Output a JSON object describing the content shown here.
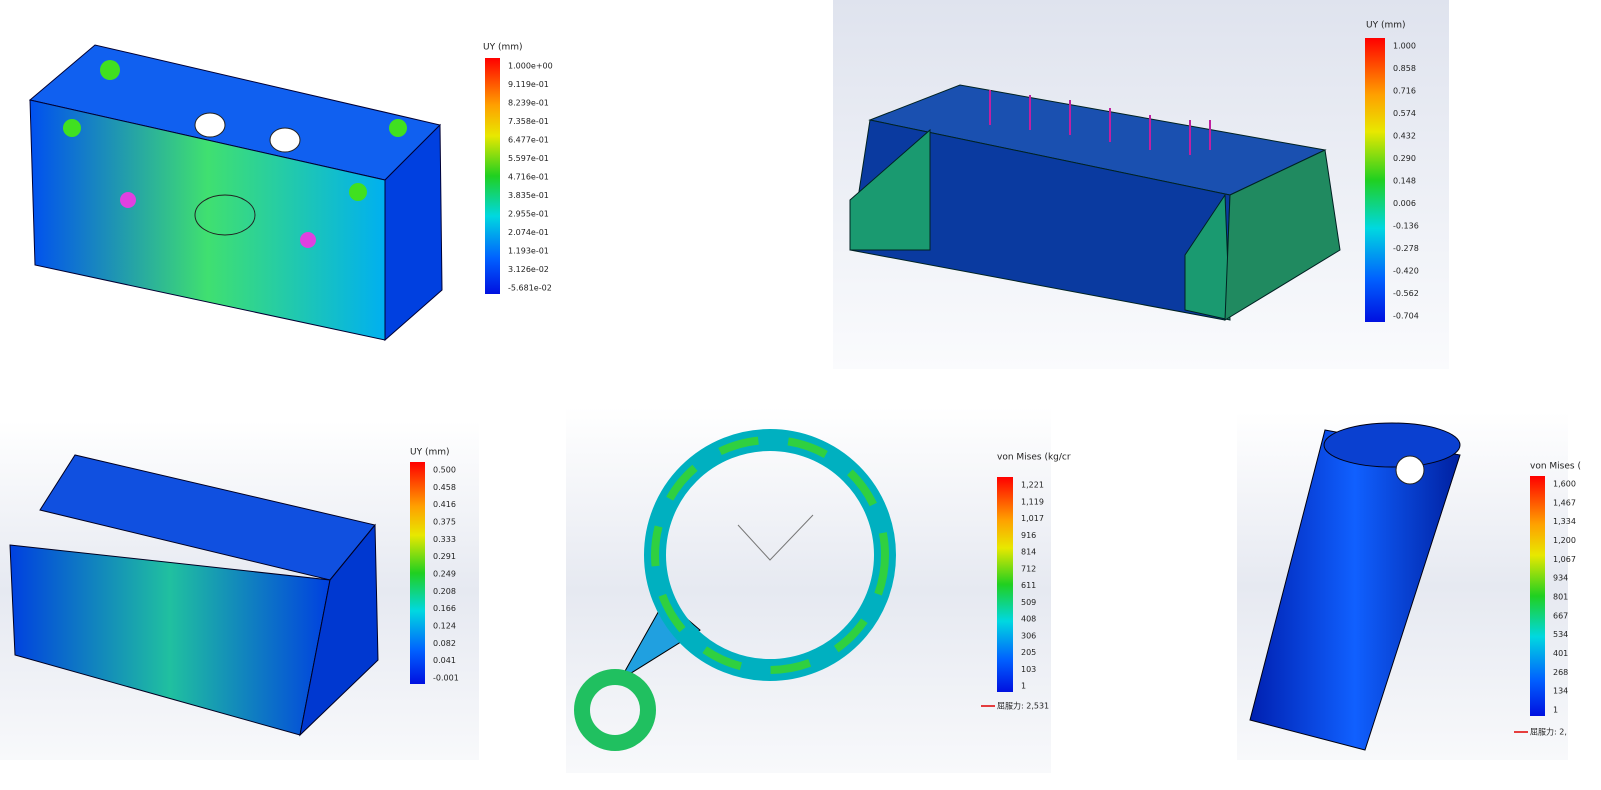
{
  "panels": [
    {
      "legend_title": "UY (mm)",
      "legend_labels": [
        "1.000e+00",
        "9.119e-01",
        "8.239e-01",
        "7.358e-01",
        "6.477e-01",
        "5.597e-01",
        "4.716e-01",
        "3.835e-01",
        "2.955e-01",
        "2.074e-01",
        "1.193e-01",
        "3.126e-02",
        "-5.681e-02"
      ]
    },
    {
      "legend_title": "UY (mm)",
      "legend_labels": [
        "1.000",
        "0.858",
        "0.716",
        "0.574",
        "0.432",
        "0.290",
        "0.148",
        "0.006",
        "-0.136",
        "-0.278",
        "-0.420",
        "-0.562",
        "-0.704"
      ]
    },
    {
      "legend_title": "UY (mm)",
      "legend_labels": [
        "0.500",
        "0.458",
        "0.416",
        "0.375",
        "0.333",
        "0.291",
        "0.249",
        "0.208",
        "0.166",
        "0.124",
        "0.082",
        "0.041",
        "-0.001"
      ]
    },
    {
      "legend_title": "von Mises (kg/cr",
      "legend_labels": [
        "1,221",
        "1,119",
        "1,017",
        "916",
        "814",
        "712",
        "611",
        "509",
        "408",
        "306",
        "205",
        "103",
        "1"
      ],
      "yield_label": "屈服力: 2,531"
    },
    {
      "legend_title": "von Mises (",
      "legend_labels": [
        "1,600",
        "1,467",
        "1,334",
        "1,200",
        "1,067",
        "934",
        "801",
        "667",
        "534",
        "401",
        "268",
        "134",
        "1"
      ],
      "yield_label": "屈服力: 2,"
    }
  ]
}
